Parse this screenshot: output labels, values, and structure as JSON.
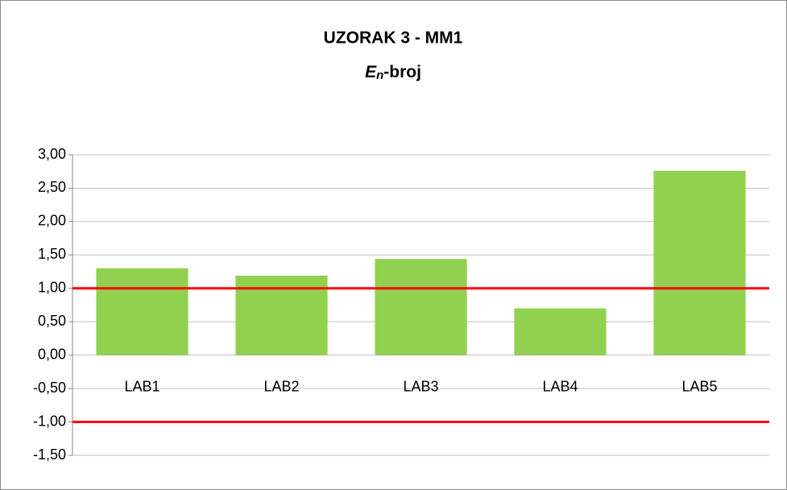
{
  "chart_data": {
    "type": "bar",
    "title": "UZORAK 3 - MM1",
    "subtitle_parts": [
      "E",
      "n",
      "-broj"
    ],
    "categories": [
      "LAB1",
      "LAB2",
      "LAB3",
      "LAB4",
      "LAB5"
    ],
    "values": [
      1.3,
      1.19,
      1.44,
      0.7,
      2.76
    ],
    "color": "#92d050",
    "ylim": [
      -1.5,
      3
    ],
    "yticks": [
      {
        "value": -1.5,
        "label": "-1,50"
      },
      {
        "value": -1,
        "label": "-1,00"
      },
      {
        "value": -0.5,
        "label": "-0,50"
      },
      {
        "value": 0,
        "label": "0,00"
      },
      {
        "value": 0.5,
        "label": "0,50"
      },
      {
        "value": 1,
        "label": "1,00"
      },
      {
        "value": 1.5,
        "label": "1,50"
      },
      {
        "value": 2,
        "label": "2,00"
      },
      {
        "value": 2.5,
        "label": "2,50"
      },
      {
        "value": 3,
        "label": "3,00"
      }
    ],
    "grid": true,
    "reference_lines": [
      1,
      -1
    ],
    "reference_color": "#ff0000"
  }
}
